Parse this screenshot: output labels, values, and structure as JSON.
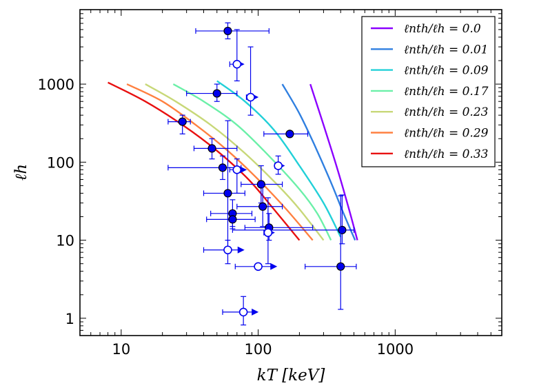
{
  "chart_data": {
    "type": "scatter",
    "title": "",
    "xlabel": "kT [keV]",
    "ylabel": "ℓh",
    "xscale": "log",
    "yscale": "log",
    "xlim": [
      5,
      6000
    ],
    "ylim": [
      0.6,
      9000
    ],
    "x_ticks": [
      {
        "value": 10,
        "label": "10"
      },
      {
        "value": 100,
        "label": "100"
      },
      {
        "value": 1000,
        "label": "1000"
      }
    ],
    "y_ticks": [
      {
        "value": 1,
        "label": "1"
      },
      {
        "value": 10,
        "label": "10"
      },
      {
        "value": 100,
        "label": "100"
      },
      {
        "value": 1000,
        "label": "1000"
      }
    ],
    "legend_position": "top-right",
    "curves": [
      {
        "label": "ℓnth/ℓh = 0.0",
        "color": "#8b00ff",
        "x": [
          240,
          300,
          380,
          460,
          530
        ],
        "y": [
          1000,
          300,
          80,
          25,
          10
        ]
      },
      {
        "label": "ℓnth/ℓh = 0.01",
        "color": "#2f7fe0",
        "x": [
          150,
          200,
          260,
          340,
          420,
          510
        ],
        "y": [
          1000,
          420,
          160,
          55,
          22,
          10
        ]
      },
      {
        "label": "ℓnth/ℓh = 0.09",
        "color": "#22d0d8",
        "x": [
          50,
          80,
          130,
          200,
          300,
          400
        ],
        "y": [
          1100,
          600,
          260,
          90,
          30,
          11
        ]
      },
      {
        "label": "ℓnth/ℓh = 0.17",
        "color": "#6bf0a8",
        "x": [
          24,
          40,
          70,
          120,
          200,
          270,
          340
        ],
        "y": [
          1000,
          600,
          300,
          120,
          45,
          22,
          10
        ]
      },
      {
        "label": "ℓnth/ℓh = 0.23",
        "color": "#c8d878",
        "x": [
          15,
          25,
          45,
          80,
          140,
          200,
          300
        ],
        "y": [
          1000,
          600,
          300,
          130,
          50,
          25,
          10
        ]
      },
      {
        "label": "ℓnth/ℓh = 0.29",
        "color": "#ff8040",
        "x": [
          11,
          20,
          35,
          60,
          100,
          160,
          250
        ],
        "y": [
          1000,
          600,
          300,
          140,
          60,
          25,
          10
        ]
      },
      {
        "label": "ℓnth/ℓh = 0.33",
        "color": "#e81010",
        "x": [
          8,
          15,
          28,
          50,
          85,
          130,
          200
        ],
        "y": [
          1050,
          600,
          300,
          140,
          60,
          25,
          10
        ]
      }
    ],
    "points": [
      {
        "x": 60,
        "y": 4800,
        "xerr": [
          35,
          120
        ],
        "yerr": [
          3800,
          6100
        ],
        "filled": true,
        "lower_limit": false
      },
      {
        "x": 70,
        "y": 1800,
        "xerr": [
          62,
          75
        ],
        "yerr": [
          1100,
          5000
        ],
        "filled": false,
        "lower_limit": true
      },
      {
        "x": 50,
        "y": 760,
        "xerr": [
          30,
          70
        ],
        "yerr": [
          600,
          1000
        ],
        "filled": true,
        "lower_limit": false
      },
      {
        "x": 88,
        "y": 680,
        "xerr": [
          82,
          95
        ],
        "yerr": [
          400,
          3000
        ],
        "filled": false,
        "lower_limit": true
      },
      {
        "x": 28,
        "y": 330,
        "xerr": [
          22,
          32
        ],
        "yerr": [
          230,
          400
        ],
        "filled": true,
        "lower_limit": false
      },
      {
        "x": 170,
        "y": 230,
        "xerr": [
          110,
          230
        ],
        "yerr": [
          230,
          230
        ],
        "filled": true,
        "lower_limit": false
      },
      {
        "x": 46,
        "y": 150,
        "xerr": [
          34,
          70
        ],
        "yerr": [
          110,
          200
        ],
        "filled": true,
        "lower_limit": false
      },
      {
        "x": 55,
        "y": 85,
        "xerr": [
          22,
          75
        ],
        "yerr": [
          60,
          120
        ],
        "filled": true,
        "lower_limit": false
      },
      {
        "x": 70,
        "y": 80,
        "xerr": [
          62,
          78
        ],
        "yerr": [
          40,
          110
        ],
        "filled": false,
        "lower_limit": true
      },
      {
        "x": 140,
        "y": 90,
        "xerr": [
          132,
          148
        ],
        "yerr": [
          70,
          120
        ],
        "filled": false,
        "lower_limit": true
      },
      {
        "x": 105,
        "y": 52,
        "xerr": [
          75,
          150
        ],
        "yerr": [
          30,
          90
        ],
        "filled": true,
        "lower_limit": false
      },
      {
        "x": 60,
        "y": 40,
        "xerr": [
          40,
          80
        ],
        "yerr": [
          8,
          340
        ],
        "filled": true,
        "lower_limit": false
      },
      {
        "x": 108,
        "y": 27,
        "xerr": [
          70,
          150
        ],
        "yerr": [
          15,
          50
        ],
        "filled": true,
        "lower_limit": false
      },
      {
        "x": 65,
        "y": 22,
        "xerr": [
          45,
          90
        ],
        "yerr": [
          15,
          33
        ],
        "filled": true,
        "lower_limit": false
      },
      {
        "x": 65,
        "y": 18.5,
        "xerr": [
          42,
          95
        ],
        "yerr": [
          14,
          23
        ],
        "filled": true,
        "lower_limit": false
      },
      {
        "x": 120,
        "y": 14.5,
        "xerr": [
          80,
          250
        ],
        "yerr": [
          10,
          22
        ],
        "filled": true,
        "lower_limit": false
      },
      {
        "x": 410,
        "y": 13.5,
        "xerr": [
          65,
          500
        ],
        "yerr": [
          9,
          38
        ],
        "filled": true,
        "lower_limit": false
      },
      {
        "x": 118,
        "y": 12.5,
        "xerr": [
          110,
          125
        ],
        "yerr": [
          5,
          35
        ],
        "filled": false,
        "lower_limit": true
      },
      {
        "x": 60,
        "y": 7.5,
        "xerr": [
          40,
          75
        ],
        "yerr": [
          5,
          10
        ],
        "filled": false,
        "lower_limit": true
      },
      {
        "x": 100,
        "y": 4.6,
        "xerr": [
          68,
          130
        ],
        "yerr": [
          4.6,
          4.6
        ],
        "filled": false,
        "lower_limit": true
      },
      {
        "x": 400,
        "y": 4.6,
        "xerr": [
          220,
          520
        ],
        "yerr": [
          1.3,
          37
        ],
        "filled": true,
        "lower_limit": false
      },
      {
        "x": 78,
        "y": 1.2,
        "xerr": [
          55,
          95
        ],
        "yerr": [
          0.82,
          1.9
        ],
        "filled": false,
        "lower_limit": true
      }
    ]
  }
}
